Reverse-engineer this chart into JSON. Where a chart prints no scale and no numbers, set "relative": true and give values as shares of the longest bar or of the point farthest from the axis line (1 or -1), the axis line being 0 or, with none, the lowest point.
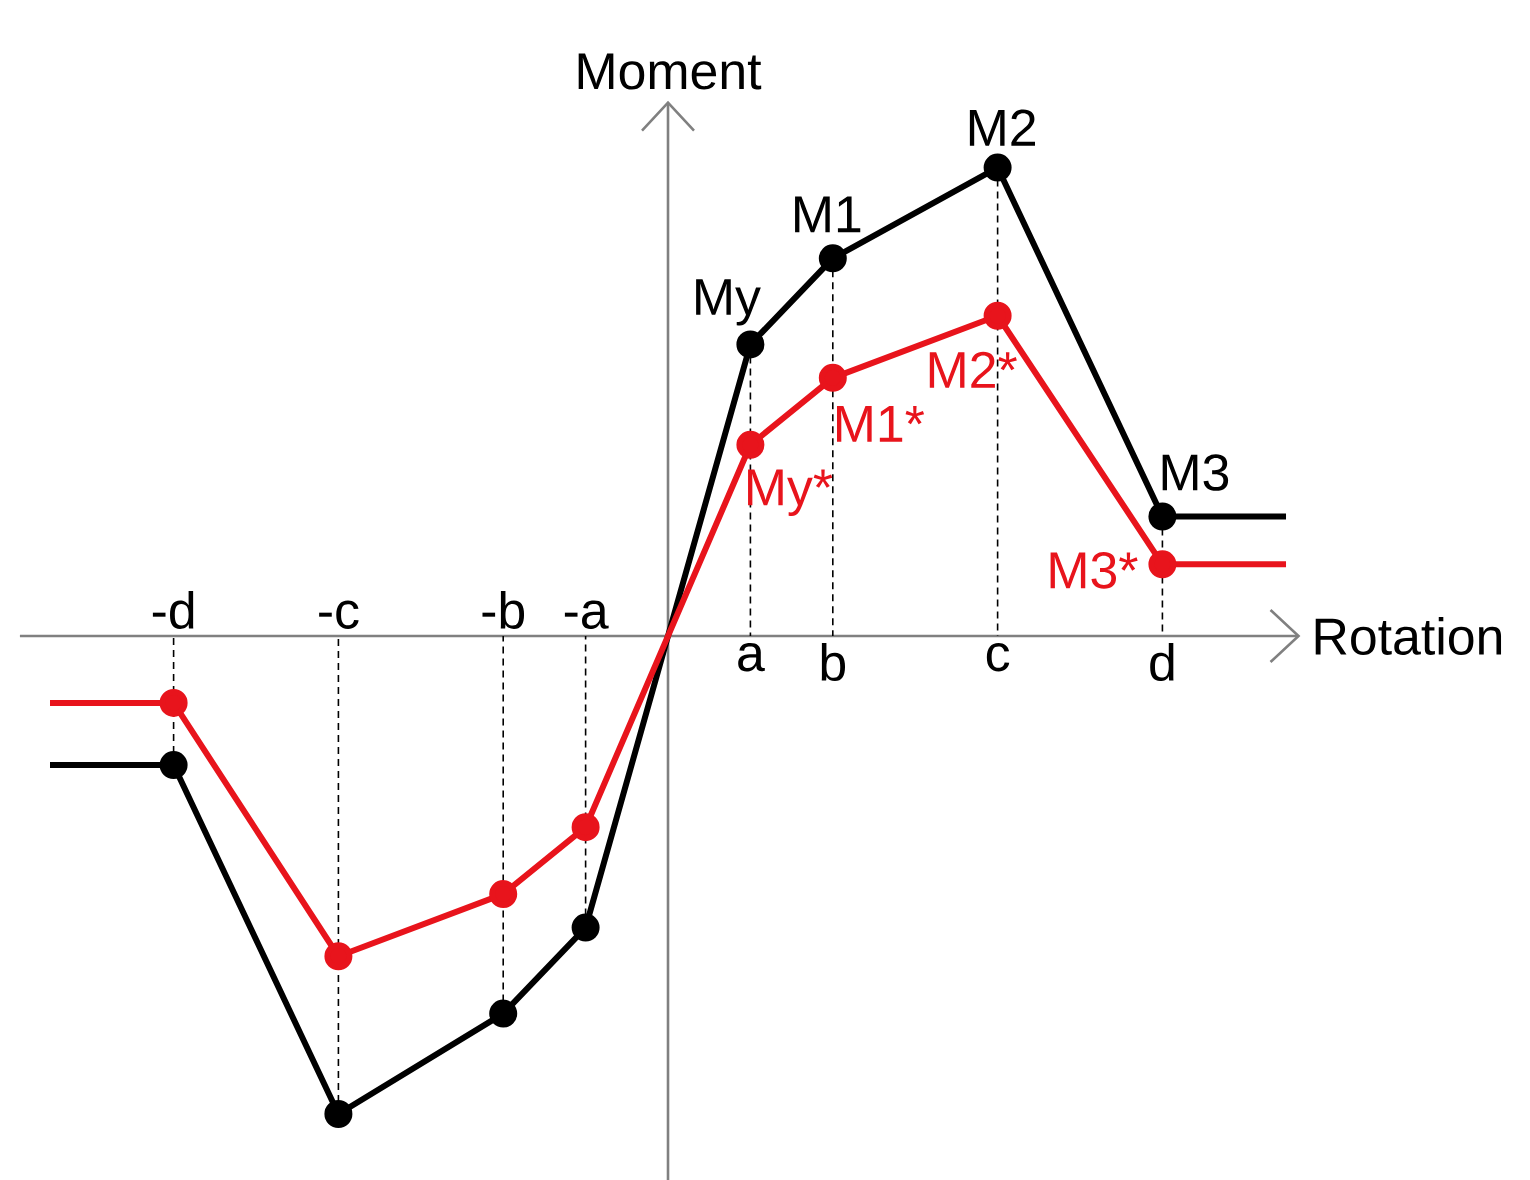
{
  "chart_data": {
    "type": "line",
    "relative": true,
    "xlabel": "Rotation",
    "ylabel": "Moment",
    "categories": [
      null,
      null,
      null,
      "-d",
      null,
      null,
      null,
      "-c",
      null,
      null,
      null,
      "-b",
      null,
      "-a",
      null,
      null,
      null,
      "a",
      null,
      "b",
      null,
      null,
      null,
      "c",
      null,
      null,
      null,
      "d",
      null,
      null,
      null
    ],
    "series": [
      {
        "color": "#000000",
        "values": [
          -0.27,
          null,
          null,
          -0.27,
          null,
          null,
          null,
          -1.0,
          null,
          null,
          null,
          -0.79,
          null,
          -0.61,
          null,
          0,
          null,
          0.61,
          null,
          0.79,
          null,
          null,
          null,
          0.98,
          null,
          null,
          null,
          0.25,
          null,
          null,
          0.25
        ]
      },
      {
        "color": "#e8141c",
        "values": [
          -0.14,
          null,
          null,
          -0.14,
          null,
          null,
          null,
          -0.67,
          null,
          null,
          null,
          -0.54,
          null,
          -0.4,
          null,
          0,
          null,
          0.4,
          null,
          0.54,
          null,
          null,
          null,
          0.67,
          null,
          null,
          null,
          0.15,
          null,
          null,
          0.15
        ]
      }
    ],
    "marker": "circle",
    "ref_lines": [
      {
        "axis": "x",
        "value": "-d",
        "color": "#000000",
        "line_style": "dashed"
      },
      {
        "axis": "x",
        "value": "-c",
        "color": "#000000",
        "line_style": "dashed"
      },
      {
        "axis": "x",
        "value": "-b",
        "color": "#000000",
        "line_style": "dashed"
      },
      {
        "axis": "x",
        "value": "-a",
        "color": "#000000",
        "line_style": "dashed"
      },
      {
        "axis": "x",
        "value": "a",
        "color": "#000000",
        "line_style": "dashed"
      },
      {
        "axis": "x",
        "value": "b",
        "color": "#000000",
        "line_style": "dashed"
      },
      {
        "axis": "x",
        "value": "c",
        "color": "#000000",
        "line_style": "dashed"
      },
      {
        "axis": "x",
        "value": "d",
        "color": "#000000",
        "line_style": "dashed"
      }
    ],
    "annotations": [
      {
        "text": "My",
        "x": "a",
        "y": 0.61
      },
      {
        "text": "M1",
        "x": "b",
        "y": 0.79
      },
      {
        "text": "M2",
        "x": "c",
        "y": 0.98
      },
      {
        "text": "M3",
        "x": "d",
        "y": 0.25
      },
      {
        "text": "My*",
        "x": "a",
        "y": 0.4
      },
      {
        "text": "M1*",
        "x": "b",
        "y": 0.54
      },
      {
        "text": "M2*",
        "x": "c",
        "y": 0.67
      },
      {
        "text": "M3*",
        "x": "d",
        "y": 0.15
      }
    ]
  }
}
